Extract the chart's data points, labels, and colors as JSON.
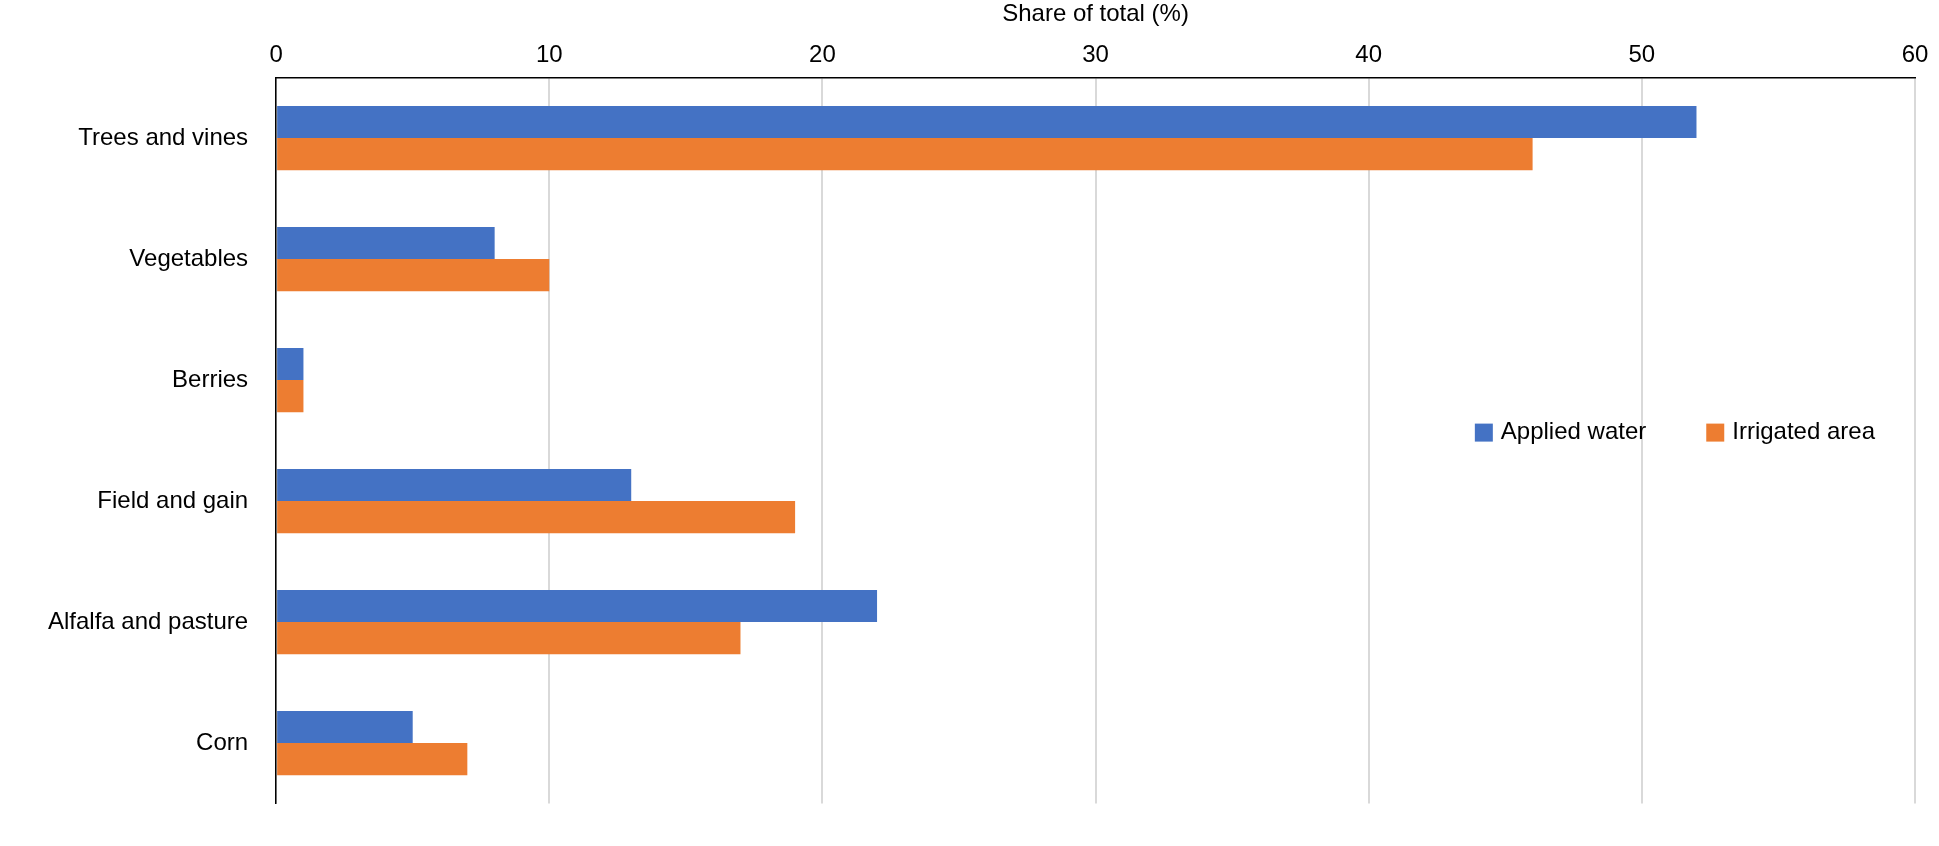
{
  "chart_data": {
    "type": "bar",
    "orientation": "horizontal",
    "xlabel": "Share of total (%)",
    "categories": [
      "Trees and vines",
      "Vegetables",
      "Berries",
      "Field and gain",
      "Alfalfa and pasture",
      "Corn"
    ],
    "series": [
      {
        "name": "Applied water",
        "color": "#4472c4",
        "values": [
          52,
          8,
          1,
          13,
          22,
          5
        ]
      },
      {
        "name": "Irrigated area",
        "color": "#ed7d31",
        "values": [
          46,
          10,
          1,
          19,
          17,
          7
        ]
      }
    ],
    "xlim": [
      0,
      60
    ],
    "xticks": [
      0,
      10,
      20,
      30,
      40,
      50,
      60
    ],
    "grid": "x",
    "legend": "right"
  }
}
